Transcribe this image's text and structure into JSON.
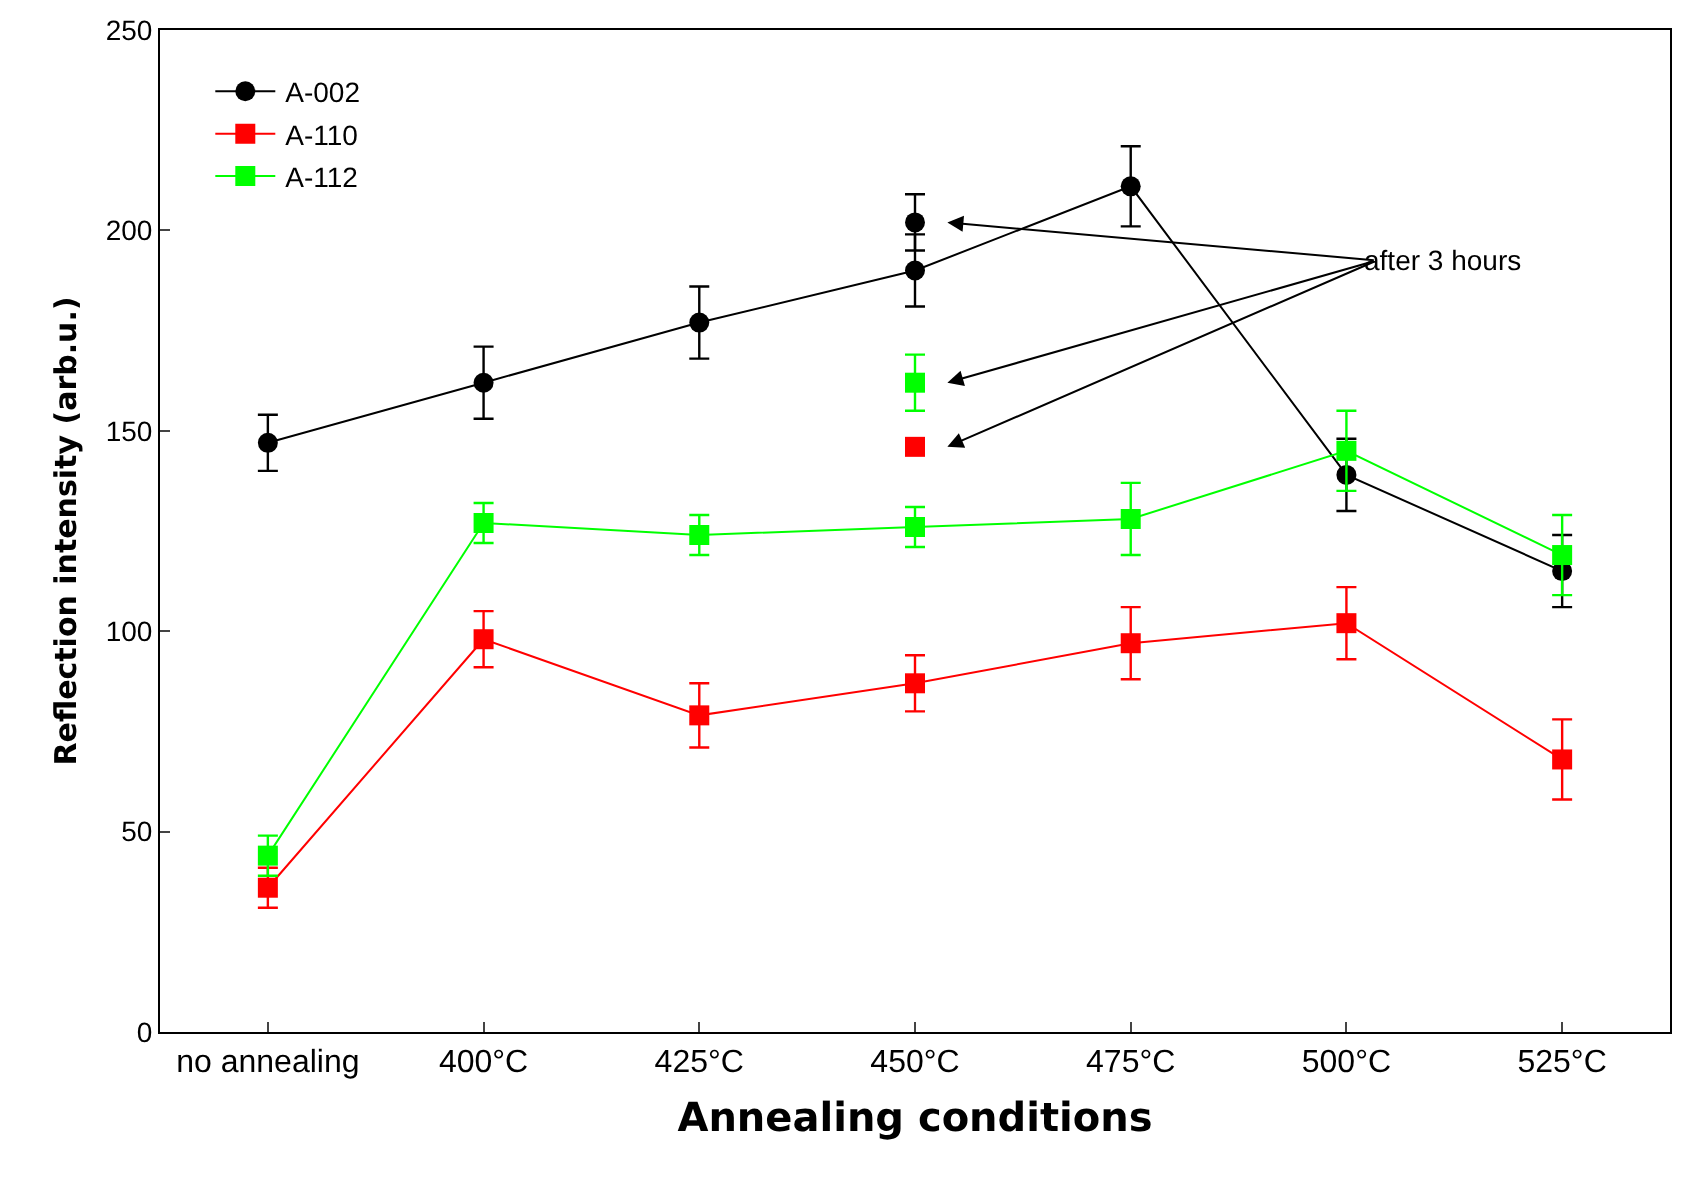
{
  "chart_data": {
    "type": "line",
    "xlabel": "Annealing conditions",
    "ylabel": "Reflection intensity (arb.u.)",
    "categories": [
      "no annealing",
      "400°C",
      "425°C",
      "450°C",
      "475°C",
      "500°C",
      "525°C"
    ],
    "ylim": [
      0,
      250
    ],
    "yticks": [
      0,
      50,
      100,
      150,
      200,
      250
    ],
    "grid": false,
    "legend": "top left",
    "line_style": "solid",
    "series": [
      {
        "name": "A-002",
        "color": "#000000",
        "marker": "circle",
        "values": [
          147,
          162,
          177,
          190,
          211,
          139,
          115
        ],
        "errors": [
          7,
          9,
          9,
          9,
          10,
          9,
          9
        ]
      },
      {
        "name": "A-110",
        "color": "#ff0000",
        "marker": "square",
        "values": [
          36,
          98,
          79,
          87,
          97,
          102,
          68
        ],
        "errors": [
          5,
          7,
          8,
          7,
          9,
          9,
          10
        ]
      },
      {
        "name": "A-112",
        "color": "#00ff00",
        "marker": "square",
        "values": [
          44,
          127,
          124,
          126,
          128,
          145,
          119
        ],
        "errors": [
          5,
          5,
          5,
          5,
          9,
          10,
          10
        ]
      },
      {
        "type": "scatter",
        "color": "#000000",
        "marker": "circle",
        "x": [
          "450°C"
        ],
        "values": [
          202
        ],
        "errors": [
          7
        ]
      },
      {
        "type": "scatter",
        "color": "#00ff00",
        "marker": "square",
        "x": [
          "450°C"
        ],
        "values": [
          162
        ],
        "errors": [
          7
        ]
      },
      {
        "type": "scatter",
        "color": "#ff0000",
        "marker": "square",
        "x": [
          "450°C"
        ],
        "values": [
          146
        ]
      }
    ],
    "annotations": [
      "after 3 hours"
    ]
  }
}
